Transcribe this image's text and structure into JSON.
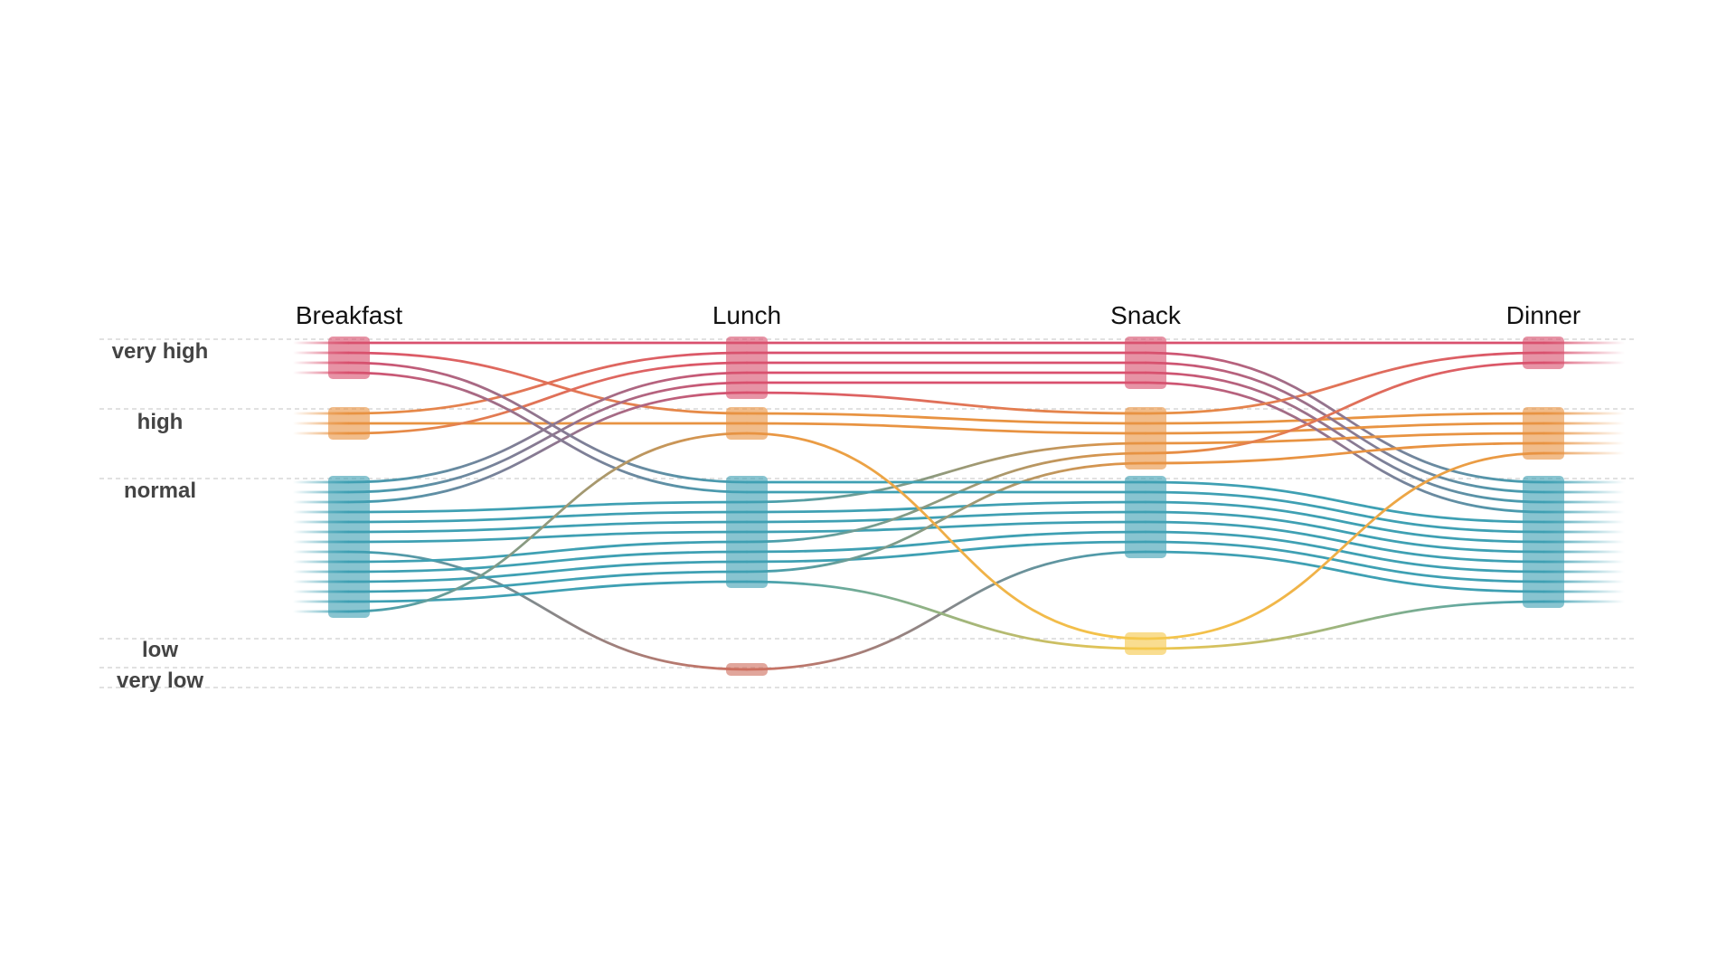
{
  "chart_data": {
    "type": "parallel-sets",
    "title": "",
    "stages": [
      "Breakfast",
      "Lunch",
      "Snack",
      "Dinner"
    ],
    "levels": [
      "very high",
      "high",
      "normal",
      "low",
      "very low"
    ],
    "level_colors": {
      "very high": "#d9506e",
      "high": "#e89342",
      "normal": "#3fa0b3",
      "low": "#f5c84c",
      "very low": "#cf7060"
    },
    "records": [
      [
        "very high",
        "very high",
        "very high",
        "very high"
      ],
      [
        "very high",
        "high",
        "high",
        "high"
      ],
      [
        "high",
        "very high",
        "very high",
        "normal"
      ],
      [
        "high",
        "high",
        "high",
        "high"
      ],
      [
        "normal",
        "very high",
        "very high",
        "normal"
      ],
      [
        "normal",
        "very high",
        "very high",
        "normal"
      ],
      [
        "normal",
        "very high",
        "high",
        "very high"
      ],
      [
        "normal",
        "normal",
        "high",
        "high"
      ],
      [
        "normal",
        "normal",
        "normal",
        "normal"
      ],
      [
        "normal",
        "normal",
        "normal",
        "normal"
      ],
      [
        "normal",
        "normal",
        "normal",
        "normal"
      ],
      [
        "normal",
        "very low",
        "normal",
        "normal"
      ],
      [
        "high",
        "very high",
        "very high",
        "normal"
      ],
      [
        "normal",
        "normal",
        "high",
        "very high"
      ],
      [
        "normal",
        "normal",
        "normal",
        "normal"
      ],
      [
        "normal",
        "normal",
        "normal",
        "normal"
      ],
      [
        "normal",
        "normal",
        "high",
        "high"
      ],
      [
        "normal",
        "normal",
        "low",
        "normal"
      ],
      [
        "very high",
        "normal",
        "normal",
        "normal"
      ],
      [
        "very high",
        "normal",
        "normal",
        "normal"
      ],
      [
        "normal",
        "high",
        "low",
        "high"
      ]
    ]
  }
}
